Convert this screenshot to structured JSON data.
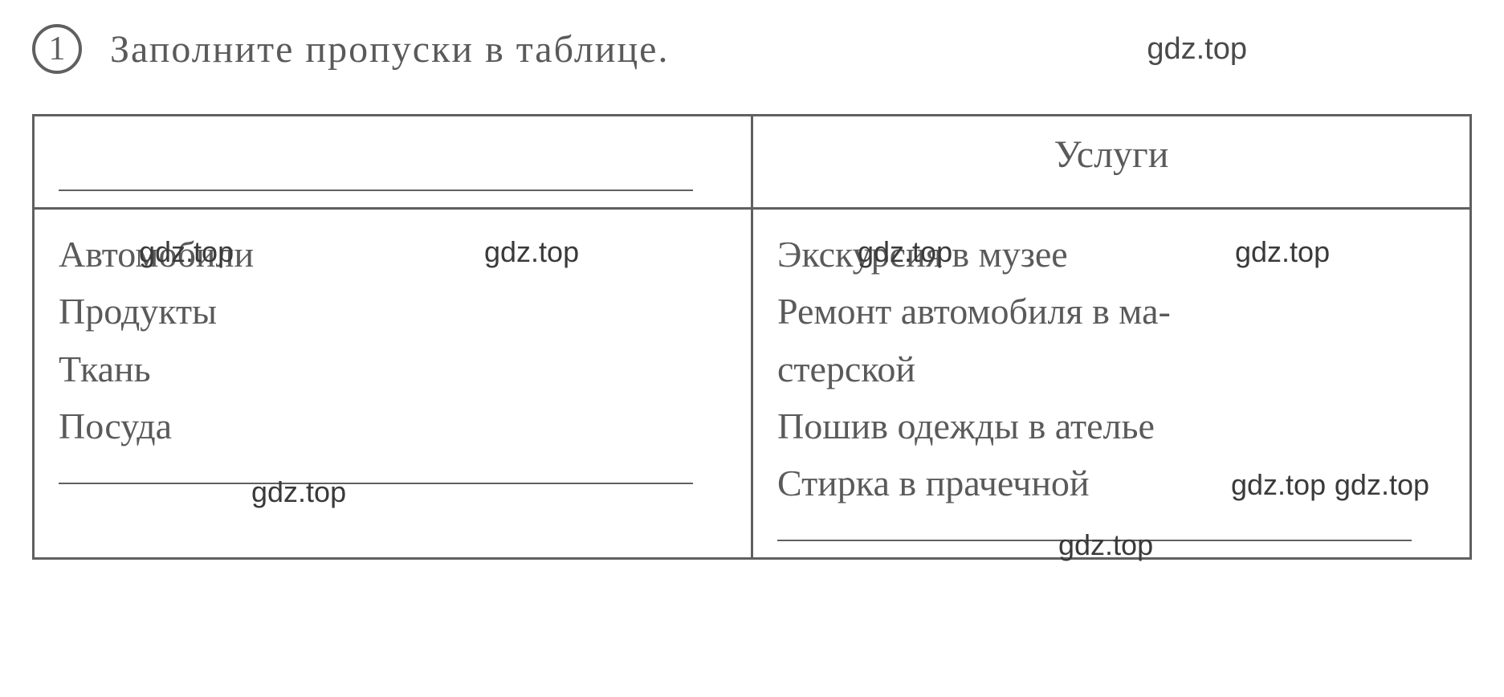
{
  "header": {
    "number": "1",
    "instruction": "Заполните  пропуски  в  таблице.",
    "watermark_top": "gdz.top"
  },
  "table": {
    "columns": [
      {
        "header": "",
        "has_blank_line": true
      },
      {
        "header": "Услуги",
        "has_blank_line": false
      }
    ],
    "left_cell": {
      "items": [
        "Автомобили",
        "Продукты",
        "Ткань",
        "Посуда"
      ],
      "watermarks": [
        "gdz.top",
        "gdz.top"
      ],
      "bottom_watermark": "gdz.top"
    },
    "right_cell": {
      "items": [
        "Экскурсия  в  музее",
        "Ремонт  автомобиля  в  ма-",
        "стерской",
        "Пошив  одежды  в  ателье",
        "Стирка  в  прачечной"
      ],
      "watermarks": [
        "gdz.top",
        "gdz.top",
        "gdz.top",
        "gdz.top",
        "gdz.top"
      ]
    }
  },
  "styling": {
    "border_color": "#606060",
    "text_color": "#5a5a5a",
    "background_color": "#ffffff",
    "watermark_color": "#3a3a3a",
    "body_fontsize": 46,
    "header_fontsize": 48,
    "watermark_fontsize": 36,
    "border_width": 3
  }
}
